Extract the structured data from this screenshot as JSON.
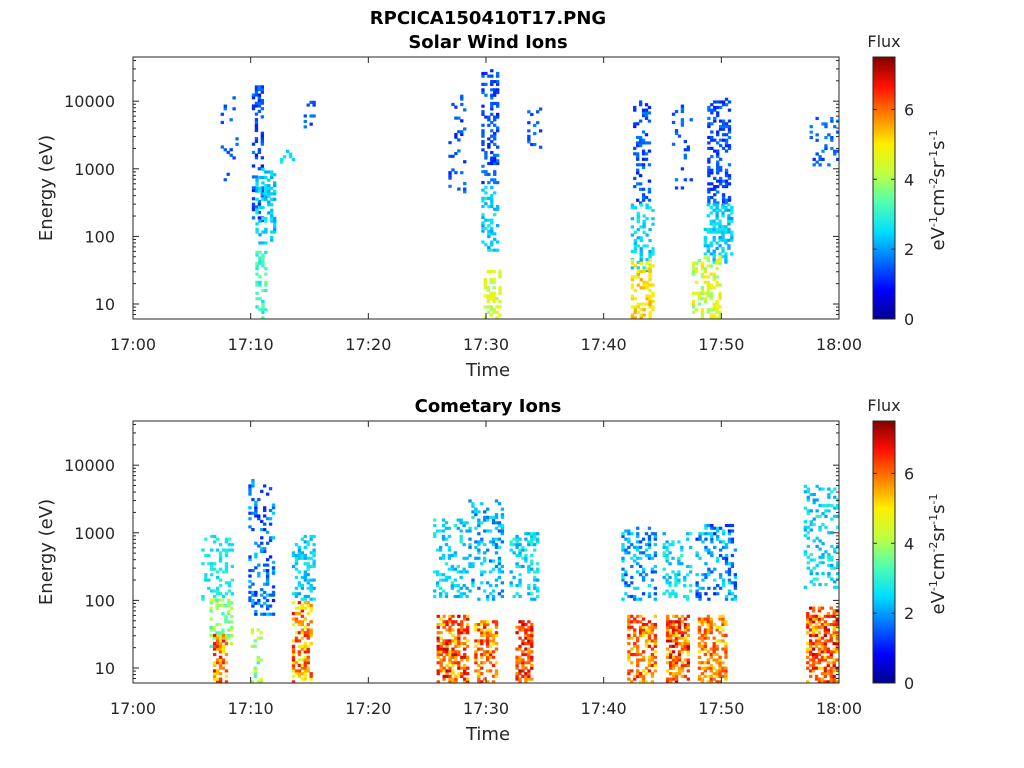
{
  "figure": {
    "suptitle": "RPCICA150410T17.PNG"
  },
  "colormap": [
    "#00008f",
    "#0000ff",
    "#0070ff",
    "#00dfff",
    "#50ffaf",
    "#bfff40",
    "#ffef00",
    "#ff8000",
    "#ff1000",
    "#800000"
  ],
  "chart_data": [
    {
      "type": "heatmap",
      "title": "Solar Wind Ions",
      "xlabel": "Time",
      "ylabel": "Energy (eV)",
      "xlim": [
        "17:00",
        "18:00"
      ],
      "xticks": [
        "17:00",
        "17:10",
        "17:20",
        "17:30",
        "17:40",
        "17:50",
        "18:00"
      ],
      "ylim": [
        6,
        45000
      ],
      "yscale": "log",
      "yticks": [
        "10",
        "100",
        "1000",
        "10000"
      ],
      "colorbar": {
        "label": "Flux",
        "units": "eV-1cm-2sr-1s-1",
        "range": [
          0,
          7.5
        ],
        "ticks": [
          "0",
          "2",
          "4",
          "6"
        ]
      },
      "grid": false,
      "bursts": [
        {
          "t": [
            7.2,
            8.8
          ],
          "e": [
            500,
            11000
          ],
          "flux": [
            1.2,
            1.8
          ],
          "density": 0.1
        },
        {
          "t": [
            10.1,
            11.0
          ],
          "e": [
            150,
            16000
          ],
          "flux": [
            1.0,
            1.8
          ],
          "density": 0.35
        },
        {
          "t": [
            10.4,
            12.0
          ],
          "e": [
            70,
            1000
          ],
          "flux": [
            2.0,
            2.8
          ],
          "density": 0.4
        },
        {
          "t": [
            10.4,
            11.2
          ],
          "e": [
            6,
            60
          ],
          "flux": [
            2.6,
            3.6
          ],
          "density": 0.35
        },
        {
          "t": [
            12.5,
            13.8
          ],
          "e": [
            1200,
            2000
          ],
          "flux": [
            2.2,
            2.8
          ],
          "density": 0.3
        },
        {
          "t": [
            14.5,
            15.5
          ],
          "e": [
            4000,
            10000
          ],
          "flux": [
            1.2,
            1.8
          ],
          "density": 0.25
        },
        {
          "t": [
            26.8,
            28.2
          ],
          "e": [
            400,
            12000
          ],
          "flux": [
            1.0,
            1.8
          ],
          "density": 0.09
        },
        {
          "t": [
            29.6,
            31.0
          ],
          "e": [
            600,
            28000
          ],
          "flux": [
            1.0,
            1.8
          ],
          "density": 0.35
        },
        {
          "t": [
            29.6,
            31.0
          ],
          "e": [
            60,
            600
          ],
          "flux": [
            2.0,
            2.8
          ],
          "density": 0.35
        },
        {
          "t": [
            29.8,
            31.2
          ],
          "e": [
            6,
            30
          ],
          "flux": [
            3.8,
            5.0
          ],
          "density": 0.4
        },
        {
          "t": [
            33.5,
            34.6
          ],
          "e": [
            2000,
            8000
          ],
          "flux": [
            1.2,
            1.8
          ],
          "density": 0.15
        },
        {
          "t": [
            42.5,
            44.0
          ],
          "e": [
            300,
            10000
          ],
          "flux": [
            1.0,
            1.8
          ],
          "density": 0.3
        },
        {
          "t": [
            42.3,
            44.2
          ],
          "e": [
            30,
            300
          ],
          "flux": [
            2.0,
            2.8
          ],
          "density": 0.35
        },
        {
          "t": [
            42.3,
            44.2
          ],
          "e": [
            6,
            45
          ],
          "flux": [
            4.5,
            5.6
          ],
          "density": 0.45
        },
        {
          "t": [
            45.8,
            47.5
          ],
          "e": [
            500,
            11000
          ],
          "flux": [
            1.2,
            1.8
          ],
          "density": 0.12
        },
        {
          "t": [
            48.8,
            50.8
          ],
          "e": [
            300,
            11000
          ],
          "flux": [
            1.0,
            1.8
          ],
          "density": 0.4
        },
        {
          "t": [
            48.5,
            50.8
          ],
          "e": [
            40,
            300
          ],
          "flux": [
            2.0,
            2.8
          ],
          "density": 0.4
        },
        {
          "t": [
            47.5,
            50.0
          ],
          "e": [
            6,
            50
          ],
          "flux": [
            3.6,
            5.2
          ],
          "density": 0.4
        },
        {
          "t": [
            57.5,
            59.8
          ],
          "e": [
            1000,
            6000
          ],
          "flux": [
            1.2,
            2.0
          ],
          "density": 0.15
        }
      ]
    },
    {
      "type": "heatmap",
      "title": "Cometary Ions",
      "xlabel": "Time",
      "ylabel": "Energy (eV)",
      "xlim": [
        "17:00",
        "18:00"
      ],
      "xticks": [
        "17:00",
        "17:10",
        "17:20",
        "17:30",
        "17:40",
        "17:50",
        "18:00"
      ],
      "ylim": [
        6,
        45000
      ],
      "yscale": "log",
      "yticks": [
        "10",
        "100",
        "1000",
        "10000"
      ],
      "colorbar": {
        "label": "Flux",
        "units": "eV-1cm-2sr-1s-1",
        "range": [
          0,
          7.5
        ],
        "ticks": [
          "0",
          "2",
          "4",
          "6"
        ]
      },
      "grid": false,
      "bursts": [
        {
          "t": [
            5.8,
            8.5
          ],
          "e": [
            100,
            900
          ],
          "flux": [
            2.4,
            3.0
          ],
          "density": 0.25
        },
        {
          "t": [
            6.5,
            8.5
          ],
          "e": [
            20,
            100
          ],
          "flux": [
            3.0,
            4.5
          ],
          "density": 0.45
        },
        {
          "t": [
            6.8,
            8.0
          ],
          "e": [
            6,
            30
          ],
          "flux": [
            5.0,
            6.8
          ],
          "density": 0.55
        },
        {
          "t": [
            9.8,
            12.0
          ],
          "e": [
            60,
            6000
          ],
          "flux": [
            1.0,
            2.4
          ],
          "density": 0.25
        },
        {
          "t": [
            10.0,
            11.0
          ],
          "e": [
            6,
            40
          ],
          "flux": [
            3.0,
            5.0
          ],
          "density": 0.3
        },
        {
          "t": [
            13.5,
            15.5
          ],
          "e": [
            100,
            900
          ],
          "flux": [
            2.0,
            2.8
          ],
          "density": 0.3
        },
        {
          "t": [
            13.5,
            15.2
          ],
          "e": [
            6,
            90
          ],
          "flux": [
            4.5,
            6.8
          ],
          "density": 0.5
        },
        {
          "t": [
            25.5,
            29.0
          ],
          "e": [
            100,
            1500
          ],
          "flux": [
            2.0,
            3.0
          ],
          "density": 0.22
        },
        {
          "t": [
            25.8,
            28.5
          ],
          "e": [
            6,
            60
          ],
          "flux": [
            5.0,
            7.2
          ],
          "density": 0.55
        },
        {
          "t": [
            28.5,
            31.5
          ],
          "e": [
            100,
            3000
          ],
          "flux": [
            1.5,
            2.8
          ],
          "density": 0.28
        },
        {
          "t": [
            29.0,
            31.0
          ],
          "e": [
            6,
            50
          ],
          "flux": [
            4.8,
            6.8
          ],
          "density": 0.5
        },
        {
          "t": [
            32.0,
            34.5
          ],
          "e": [
            100,
            1000
          ],
          "flux": [
            2.0,
            3.0
          ],
          "density": 0.3
        },
        {
          "t": [
            32.5,
            34.0
          ],
          "e": [
            6,
            50
          ],
          "flux": [
            5.5,
            7.2
          ],
          "density": 0.6
        },
        {
          "t": [
            41.5,
            44.5
          ],
          "e": [
            100,
            1200
          ],
          "flux": [
            1.2,
            2.8
          ],
          "density": 0.28
        },
        {
          "t": [
            42.0,
            44.5
          ],
          "e": [
            6,
            60
          ],
          "flux": [
            5.0,
            6.8
          ],
          "density": 0.5
        },
        {
          "t": [
            45.0,
            47.5
          ],
          "e": [
            100,
            1000
          ],
          "flux": [
            2.0,
            3.0
          ],
          "density": 0.28
        },
        {
          "t": [
            45.3,
            47.3
          ],
          "e": [
            6,
            60
          ],
          "flux": [
            5.0,
            7.2
          ],
          "density": 0.55
        },
        {
          "t": [
            47.8,
            51.2
          ],
          "e": [
            100,
            1300
          ],
          "flux": [
            1.0,
            2.8
          ],
          "density": 0.3
        },
        {
          "t": [
            48.0,
            50.5
          ],
          "e": [
            6,
            60
          ],
          "flux": [
            5.0,
            6.5
          ],
          "density": 0.5
        },
        {
          "t": [
            57.0,
            60.0
          ],
          "e": [
            150,
            5000
          ],
          "flux": [
            2.0,
            3.0
          ],
          "density": 0.25
        },
        {
          "t": [
            57.2,
            59.8
          ],
          "e": [
            6,
            80
          ],
          "flux": [
            5.0,
            7.2
          ],
          "density": 0.55
        }
      ]
    }
  ]
}
